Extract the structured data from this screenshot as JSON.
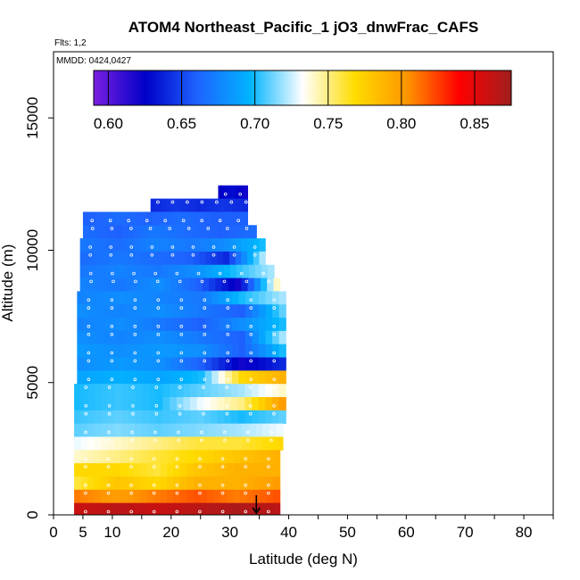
{
  "chart_data": {
    "type": "heatmap",
    "title": "ATOM4 Northeast_Pacific_1 jO3_dnwFrac_CAFS",
    "flights_label": "Flts: 1,2",
    "date_label": "MMDD: 0424,0427",
    "xlabel": "Latitude (deg N)",
    "ylabel": "Altitude (m)",
    "xlim": [
      0,
      85
    ],
    "ylim": [
      0,
      17500
    ],
    "x_ticks": [
      0,
      5,
      10,
      20,
      30,
      40,
      50,
      60,
      70,
      80
    ],
    "y_ticks": [
      0,
      5000,
      10000,
      15000
    ],
    "colorbar": {
      "range": [
        0.59,
        0.875
      ],
      "ticks": [
        "0.60",
        "0.65",
        "0.70",
        "0.75",
        "0.80",
        "0.85"
      ],
      "tick_values": [
        0.6,
        0.65,
        0.7,
        0.75,
        0.8,
        0.85
      ],
      "colors": [
        "#7a1fe0",
        "#0000c8",
        "#1e64ff",
        "#00b4ff",
        "#ffffff",
        "#ffdc00",
        "#ff9600",
        "#ff0000",
        "#a01e1e"
      ]
    },
    "altitude_bins": [
      {
        "alt": 12200,
        "lat": [
          28.0,
          33.0
        ],
        "values": [
          0.625,
          0.63,
          0.62
        ]
      },
      {
        "alt": 11700,
        "lat": [
          16.5,
          33.0
        ],
        "values": [
          0.64,
          0.645,
          0.64,
          0.645,
          0.64
        ]
      },
      {
        "alt": 11200,
        "lat": [
          5.0,
          33.0
        ],
        "values": [
          0.66,
          0.665,
          0.66,
          0.665,
          0.66,
          0.66
        ]
      },
      {
        "alt": 10700,
        "lat": [
          5.0,
          34.5
        ],
        "values": [
          0.665,
          0.66,
          0.67,
          0.665,
          0.66,
          0.665
        ]
      },
      {
        "alt": 10200,
        "lat": [
          4.5,
          36.0
        ],
        "values": [
          0.67,
          0.665,
          0.675,
          0.67,
          0.68,
          0.7
        ]
      },
      {
        "alt": 9700,
        "lat": [
          4.5,
          36.0
        ],
        "values": [
          0.665,
          0.67,
          0.665,
          0.66,
          0.64,
          0.72
        ]
      },
      {
        "alt": 9200,
        "lat": [
          4.5,
          37.5
        ],
        "values": [
          0.67,
          0.675,
          0.67,
          0.68,
          0.7,
          0.72
        ]
      },
      {
        "alt": 8700,
        "lat": [
          4.5,
          38.5
        ],
        "values": [
          0.675,
          0.67,
          0.68,
          0.66,
          0.62,
          0.74
        ]
      },
      {
        "alt": 8200,
        "lat": [
          4.0,
          39.5
        ],
        "values": [
          0.675,
          0.68,
          0.675,
          0.67,
          0.7,
          0.72
        ]
      },
      {
        "alt": 7700,
        "lat": [
          4.0,
          39.5
        ],
        "values": [
          0.68,
          0.675,
          0.68,
          0.67,
          0.66,
          0.71
        ]
      },
      {
        "alt": 7200,
        "lat": [
          4.0,
          39.5
        ],
        "values": [
          0.675,
          0.68,
          0.67,
          0.66,
          0.68,
          0.7
        ]
      },
      {
        "alt": 6700,
        "lat": [
          4.0,
          39.5
        ],
        "values": [
          0.68,
          0.675,
          0.68,
          0.67,
          0.66,
          0.72
        ]
      },
      {
        "alt": 6200,
        "lat": [
          4.0,
          39.5
        ],
        "values": [
          0.685,
          0.68,
          0.685,
          0.68,
          0.66,
          0.7
        ]
      },
      {
        "alt": 5700,
        "lat": [
          4.0,
          39.5
        ],
        "values": [
          0.68,
          0.685,
          0.68,
          0.66,
          0.62,
          0.64
        ]
      },
      {
        "alt": 5200,
        "lat": [
          4.0,
          39.5
        ],
        "values": [
          0.69,
          0.695,
          0.69,
          0.7,
          0.77,
          0.79
        ]
      },
      {
        "alt": 4700,
        "lat": [
          3.5,
          39.5
        ],
        "values": [
          0.7,
          0.705,
          0.7,
          0.71,
          0.72,
          0.74
        ]
      },
      {
        "alt": 4200,
        "lat": [
          3.5,
          39.5
        ],
        "values": [
          0.7,
          0.705,
          0.7,
          0.73,
          0.75,
          0.8
        ]
      },
      {
        "alt": 3700,
        "lat": [
          3.5,
          39.5
        ],
        "values": [
          0.705,
          0.71,
          0.705,
          0.71,
          0.7,
          0.71
        ]
      },
      {
        "alt": 3200,
        "lat": [
          3.5,
          39.0
        ],
        "values": [
          0.71,
          0.715,
          0.71,
          0.715,
          0.72,
          0.73
        ]
      },
      {
        "alt": 2700,
        "lat": [
          3.5,
          39.0
        ],
        "values": [
          0.73,
          0.74,
          0.75,
          0.76,
          0.76,
          0.77
        ]
      },
      {
        "alt": 2200,
        "lat": [
          3.5,
          38.5
        ],
        "values": [
          0.74,
          0.75,
          0.76,
          0.77,
          0.78,
          0.79
        ]
      },
      {
        "alt": 1700,
        "lat": [
          3.5,
          38.5
        ],
        "values": [
          0.77,
          0.77,
          0.76,
          0.78,
          0.79,
          0.79
        ]
      },
      {
        "alt": 1200,
        "lat": [
          3.5,
          38.5
        ],
        "values": [
          0.76,
          0.78,
          0.77,
          0.79,
          0.79,
          0.8
        ]
      },
      {
        "alt": 700,
        "lat": [
          3.5,
          38.5
        ],
        "values": [
          0.81,
          0.8,
          0.81,
          0.82,
          0.81,
          0.82
        ]
      },
      {
        "alt": 200,
        "lat": [
          3.5,
          38.5
        ],
        "values": [
          0.86,
          0.865,
          0.86,
          0.865,
          0.87,
          0.865
        ]
      }
    ],
    "arrow_marker": {
      "lat": 34.5,
      "alt": 0
    }
  }
}
